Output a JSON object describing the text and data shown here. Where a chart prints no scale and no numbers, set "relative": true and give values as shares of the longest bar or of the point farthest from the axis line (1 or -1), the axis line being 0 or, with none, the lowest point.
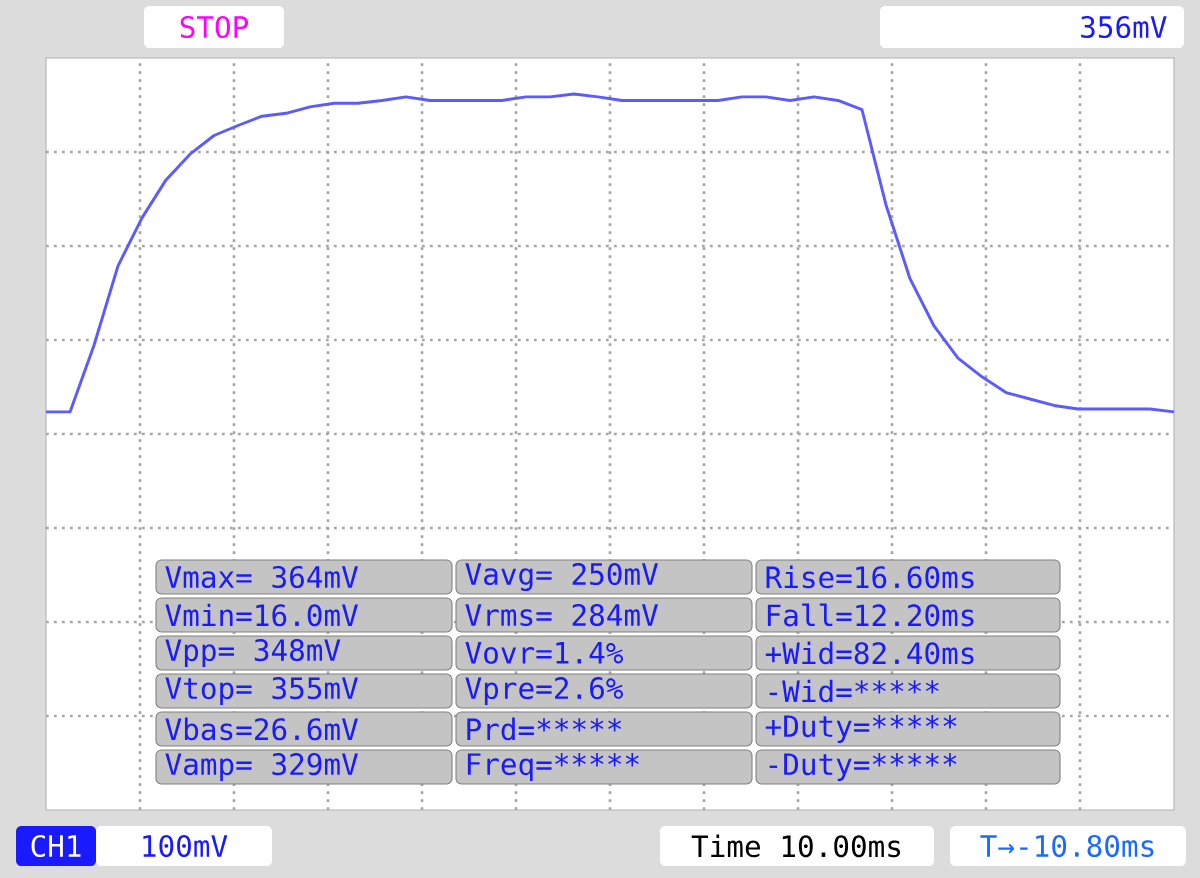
{
  "chart_data": {
    "type": "line",
    "relative": true,
    "grid": true,
    "categories": [
      null,
      null,
      null,
      null,
      null,
      null,
      null,
      null,
      null,
      null,
      null,
      null,
      null,
      null,
      null,
      null,
      null,
      null,
      null,
      null,
      null,
      null,
      null,
      null,
      null,
      null,
      null,
      null,
      null,
      null,
      null,
      null,
      null,
      null,
      null,
      null,
      null,
      null,
      null,
      null,
      null,
      null,
      null,
      null,
      null,
      null,
      null,
      null
    ],
    "series": [
      {
        "color": "#5b5bff",
        "values": [
          0.556,
          0.556,
          0.649,
          0.76,
          0.827,
          0.88,
          0.916,
          0.942,
          0.956,
          0.969,
          0.973,
          0.982,
          0.987,
          0.987,
          0.991,
          0.996,
          0.991,
          0.991,
          0.991,
          0.991,
          0.996,
          0.996,
          1,
          0.996,
          0.991,
          0.991,
          0.991,
          0.991,
          0.991,
          0.996,
          0.996,
          0.991,
          0.996,
          0.991,
          0.978,
          0.845,
          0.742,
          0.676,
          0.631,
          0.605,
          0.583,
          0.574,
          0.565,
          0.56,
          0.56,
          0.56,
          0.56,
          0.556
        ]
      }
    ],
    "annotations": [
      "Vmax= 364mV",
      "Vavg= 250mV",
      "Rise=16.60ms",
      "Vmin=16.0mV",
      "Vrms= 284mV",
      "Fall=12.20ms",
      "Vpp= 348mV",
      "Vovr=1.4%",
      "+Wid=82.40ms",
      "Vtop= 355mV",
      "Vpre=2.6%",
      "-Wid=*****",
      "Vbas=26.6mV",
      "Prd=*****",
      "+Duty=*****",
      "Vamp= 329mV",
      "Freq=*****",
      "-Duty=*****",
      "STOP",
      "356mV",
      "CH1",
      "100mV",
      "Time 10.00ms",
      "T→-10.80ms"
    ]
  }
}
